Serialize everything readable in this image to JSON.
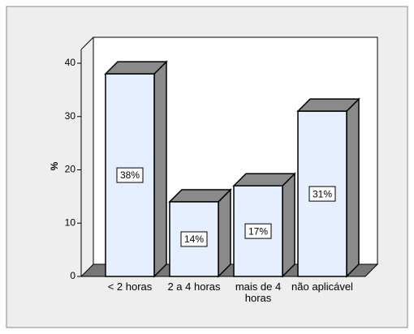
{
  "chart_data": {
    "type": "bar",
    "y_label": "%",
    "categories": [
      "< 2 horas",
      "2 a 4 horas",
      "mais de 4 horas",
      "não aplicável"
    ],
    "values": [
      38,
      14,
      17,
      31
    ],
    "value_labels": [
      "38%",
      "14%",
      "17%",
      "31%"
    ],
    "color": "#e6efff",
    "ylim": [
      0,
      40
    ],
    "yticks": [
      0,
      10,
      20,
      30,
      40
    ]
  }
}
